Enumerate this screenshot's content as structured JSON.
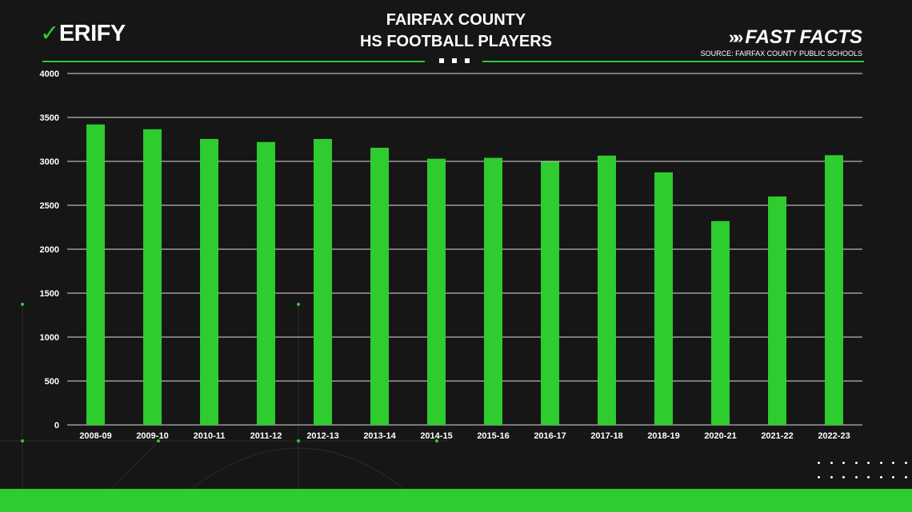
{
  "header": {
    "logo_text": "ERIFY",
    "logo_check": "✓",
    "title_line1": "FAIRFAX COUNTY",
    "title_line2": "HS FOOTBALL PLAYERS",
    "brand_label": "FAST FACTS",
    "brand_arrows": "»»",
    "source": "SOURCE: FAIRFAX COUNTY PUBLIC SCHOOLS"
  },
  "colors": {
    "background": "#161616",
    "accent": "#2ecc2e",
    "bar": "#2ecc2e",
    "grid": "#ffffff",
    "text": "#ffffff"
  },
  "chart_data": {
    "type": "bar",
    "title": "FAIRFAX COUNTY HS FOOTBALL PLAYERS",
    "xlabel": "",
    "ylabel": "",
    "categories": [
      "2008-09",
      "2009-10",
      "2010-11",
      "2011-12",
      "2012-13",
      "2013-14",
      "2014-15",
      "2015-16",
      "2016-17",
      "2017-18",
      "2018-19",
      "2020-21",
      "2021-22",
      "2022-23"
    ],
    "values": [
      3420,
      3365,
      3255,
      3220,
      3255,
      3155,
      3030,
      3040,
      2995,
      3065,
      2875,
      2320,
      2600,
      3070
    ],
    "ylim": [
      0,
      4000
    ],
    "yticks": [
      0,
      500,
      1000,
      1500,
      2000,
      2500,
      3000,
      3500,
      4000
    ],
    "grid": true,
    "legend": "none"
  }
}
